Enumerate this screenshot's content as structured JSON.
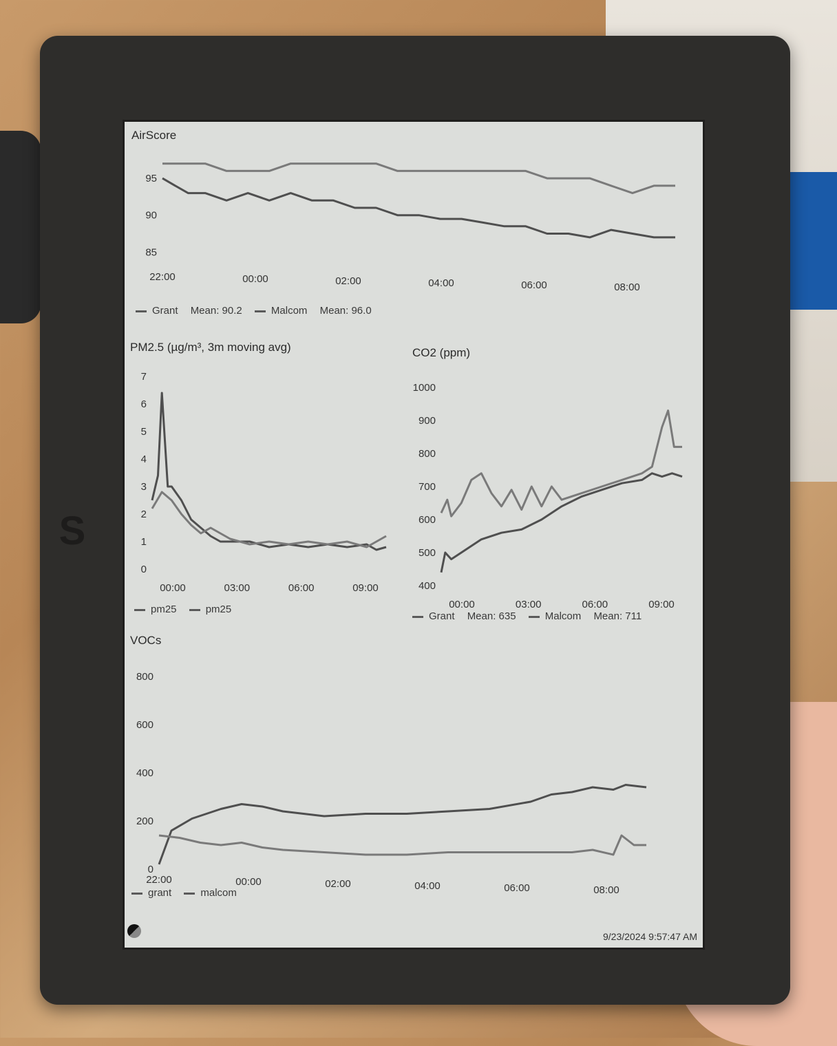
{
  "footer": {
    "timestamp": "9/23/2024 9:57:47 AM"
  },
  "charts": {
    "airscore": {
      "title": "AirScore",
      "legend": [
        {
          "name": "Grant",
          "mean_label": "Mean: 90.2"
        },
        {
          "name": "Malcom",
          "mean_label": "Mean: 96.0"
        }
      ]
    },
    "pm25": {
      "title": "PM2.5 (µg/m³, 3m moving avg)",
      "legend": [
        {
          "name": "pm25"
        },
        {
          "name": "pm25"
        }
      ]
    },
    "co2": {
      "title": "CO2 (ppm)",
      "legend": [
        {
          "name": "Grant",
          "mean_label": "Mean: 635"
        },
        {
          "name": "Malcom",
          "mean_label": "Mean: 711"
        }
      ]
    },
    "vocs": {
      "title": "VOCs",
      "legend": [
        {
          "name": "grant"
        },
        {
          "name": "malcom"
        }
      ]
    }
  },
  "chart_data": [
    {
      "id": "airscore",
      "type": "line",
      "title": "AirScore",
      "x_ticks": [
        "22:00",
        "00:00",
        "02:00",
        "04:00",
        "06:00",
        "08:00"
      ],
      "y_ticks": [
        85,
        90,
        95
      ],
      "xlim": [
        0,
        12
      ],
      "ylim": [
        84,
        98
      ],
      "series": [
        {
          "name": "Grant",
          "x": [
            0,
            0.3,
            0.6,
            1,
            1.5,
            2,
            2.5,
            3,
            3.5,
            4,
            4.5,
            5,
            5.5,
            6,
            6.5,
            7,
            7.5,
            8,
            8.5,
            9,
            9.5,
            10,
            10.5,
            11,
            11.5,
            12
          ],
          "y": [
            95,
            94,
            93,
            93,
            92,
            93,
            92,
            93,
            92,
            92,
            91,
            91,
            90,
            90,
            89.5,
            89.5,
            89,
            88.5,
            88.5,
            87.5,
            87.5,
            87,
            88,
            87.5,
            87,
            87
          ]
        },
        {
          "name": "Malcom",
          "x": [
            0,
            0.5,
            1,
            1.5,
            2,
            2.5,
            3,
            3.5,
            4,
            4.5,
            5,
            5.5,
            6,
            6.5,
            7,
            7.5,
            8,
            8.5,
            9,
            9.5,
            10,
            10.5,
            11,
            11.5,
            12
          ],
          "y": [
            97,
            97,
            97,
            96,
            96,
            96,
            97,
            97,
            97,
            97,
            97,
            96,
            96,
            96,
            96,
            96,
            96,
            96,
            95,
            95,
            95,
            94,
            93,
            94,
            94
          ]
        }
      ]
    },
    {
      "id": "pm25",
      "type": "line",
      "title": "PM2.5 (µg/m³, 3m moving avg)",
      "x_ticks": [
        "00:00",
        "03:00",
        "06:00",
        "09:00"
      ],
      "y_ticks": [
        0,
        1,
        2,
        3,
        4,
        5,
        6,
        7
      ],
      "xlim": [
        -2,
        10
      ],
      "ylim": [
        0,
        7
      ],
      "series": [
        {
          "name": "pm25",
          "x": [
            -2,
            -1.7,
            -1.5,
            -1.2,
            -1,
            -0.5,
            0,
            0.5,
            1,
            1.5,
            2,
            3,
            4,
            5,
            6,
            7,
            8,
            9,
            9.5,
            10
          ],
          "y": [
            2.5,
            3.4,
            6.4,
            3,
            3,
            2.5,
            1.8,
            1.5,
            1.2,
            1,
            1,
            1,
            0.8,
            0.9,
            0.8,
            0.9,
            0.8,
            0.9,
            0.7,
            0.8
          ]
        },
        {
          "name": "pm25",
          "x": [
            -2,
            -1.5,
            -1,
            -0.5,
            0,
            0.5,
            1,
            2,
            3,
            4,
            5,
            6,
            7,
            8,
            9,
            10
          ],
          "y": [
            2.2,
            2.8,
            2.5,
            2,
            1.6,
            1.3,
            1.5,
            1.1,
            0.9,
            1,
            0.9,
            1,
            0.9,
            1,
            0.8,
            1.2
          ]
        }
      ]
    },
    {
      "id": "co2",
      "type": "line",
      "title": "CO2 (ppm)",
      "x_ticks": [
        "00:00",
        "03:00",
        "06:00",
        "09:00"
      ],
      "y_ticks": [
        400,
        500,
        600,
        700,
        800,
        900,
        1000
      ],
      "xlim": [
        -2,
        10
      ],
      "ylim": [
        400,
        1000
      ],
      "series": [
        {
          "name": "Grant",
          "x": [
            -2,
            -1.8,
            -1.5,
            -1,
            0,
            1,
            2,
            3,
            4,
            5,
            6,
            7,
            8,
            8.5,
            9,
            9.5,
            10
          ],
          "y": [
            440,
            500,
            480,
            500,
            540,
            560,
            570,
            600,
            640,
            670,
            690,
            710,
            720,
            740,
            730,
            740,
            730
          ]
        },
        {
          "name": "Malcom",
          "x": [
            -2,
            -1.7,
            -1.5,
            -1,
            -0.5,
            0,
            0.5,
            1,
            1.5,
            2,
            2.5,
            3,
            3.5,
            4,
            5,
            6,
            7,
            8,
            8.5,
            9,
            9.3,
            9.6,
            10
          ],
          "y": [
            620,
            660,
            610,
            650,
            720,
            740,
            680,
            640,
            690,
            630,
            700,
            640,
            700,
            660,
            680,
            700,
            720,
            740,
            760,
            880,
            930,
            820,
            820
          ]
        }
      ]
    },
    {
      "id": "vocs",
      "type": "line",
      "title": "VOCs",
      "x_ticks": [
        "22:00",
        "00:00",
        "02:00",
        "04:00",
        "06:00",
        "08:00"
      ],
      "y_ticks": [
        0,
        200,
        400,
        600,
        800
      ],
      "xlim": [
        0,
        12
      ],
      "ylim": [
        0,
        800
      ],
      "series": [
        {
          "name": "grant",
          "x": [
            0,
            0.3,
            0.8,
            1.5,
            2,
            2.5,
            3,
            4,
            5,
            6,
            7,
            8,
            9,
            9.5,
            10,
            10.5,
            11,
            11.3,
            11.8
          ],
          "y": [
            20,
            160,
            210,
            250,
            270,
            260,
            240,
            220,
            230,
            230,
            240,
            250,
            280,
            310,
            320,
            340,
            330,
            350,
            340
          ]
        },
        {
          "name": "malcom",
          "x": [
            0,
            0.5,
            1,
            1.5,
            2,
            2.5,
            3,
            4,
            5,
            6,
            7,
            8,
            9,
            10,
            10.5,
            11,
            11.2,
            11.5,
            11.8
          ],
          "y": [
            140,
            130,
            110,
            100,
            110,
            90,
            80,
            70,
            60,
            60,
            70,
            70,
            70,
            70,
            80,
            60,
            140,
            100,
            100
          ]
        }
      ]
    }
  ]
}
